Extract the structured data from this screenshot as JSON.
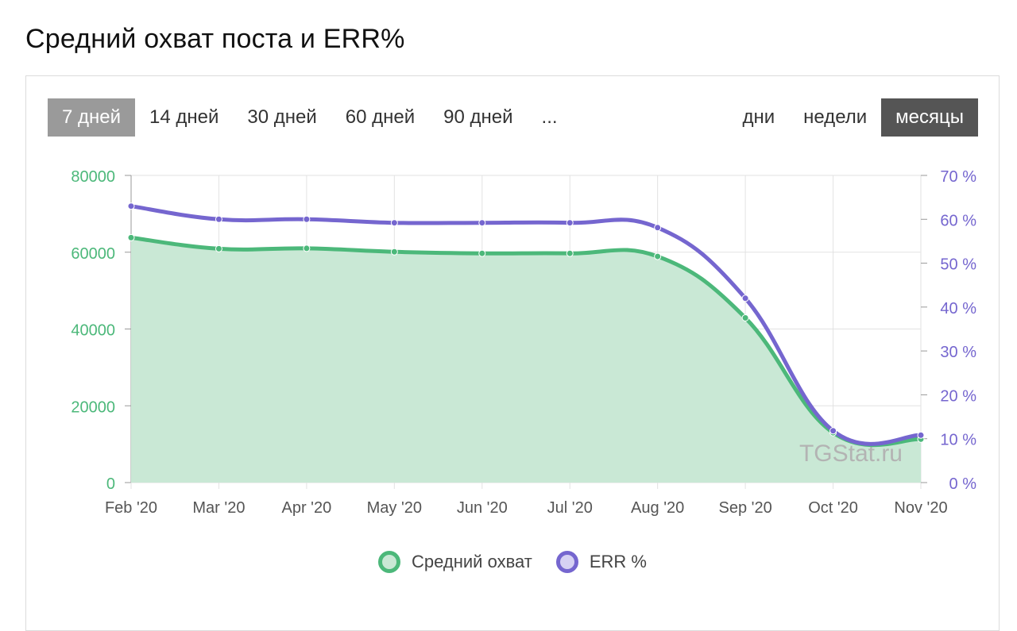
{
  "title": "Средний охват поста и ERR%",
  "range_tabs": [
    {
      "label": "7 дней",
      "active": true
    },
    {
      "label": "14 дней",
      "active": false
    },
    {
      "label": "30 дней",
      "active": false
    },
    {
      "label": "60 дней",
      "active": false
    },
    {
      "label": "90 дней",
      "active": false
    },
    {
      "label": "...",
      "active": false
    }
  ],
  "period_tabs": [
    {
      "label": "дни",
      "active": false
    },
    {
      "label": "недели",
      "active": false
    },
    {
      "label": "месяцы",
      "active": true
    }
  ],
  "watermark": "TGStat.ru",
  "colors": {
    "reach": "#4cb87a",
    "reach_fill": "#c9e8d5",
    "err": "#7566cf",
    "err_fill": "#d6d1f3",
    "grid": "#e2e2e2"
  },
  "chart_data": {
    "type": "line",
    "categories": [
      "Feb '20",
      "Mar '20",
      "Apr '20",
      "May '20",
      "Jun '20",
      "Jul '20",
      "Aug '20",
      "Sep '20",
      "Oct '20",
      "Nov '20"
    ],
    "series": [
      {
        "name": "Средний охват",
        "axis": "left",
        "area": true,
        "values": [
          63800,
          60900,
          61000,
          60100,
          59700,
          59700,
          58900,
          42900,
          13000,
          11300
        ]
      },
      {
        "name": "ERR %",
        "axis": "right",
        "area": false,
        "values": [
          63.0,
          60.0,
          60.0,
          59.2,
          59.2,
          59.2,
          58.1,
          42.0,
          11.8,
          10.8
        ]
      }
    ],
    "y_left": {
      "min": 0,
      "max": 80000,
      "ticks": [
        "0",
        "20000",
        "40000",
        "60000",
        "80000"
      ]
    },
    "y_right": {
      "min": 0,
      "max": 70,
      "ticks": [
        "0 %",
        "10 %",
        "20 %",
        "30 %",
        "40 %",
        "50 %",
        "60 %",
        "70 %"
      ]
    },
    "grid": true,
    "legend_position": "bottom"
  }
}
